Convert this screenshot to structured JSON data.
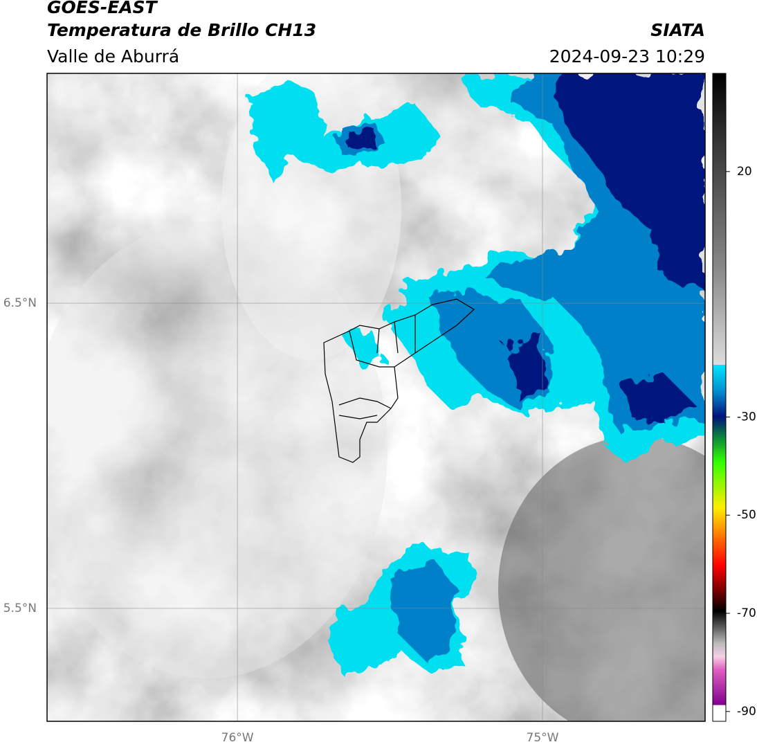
{
  "header": {
    "title": "GOES-EAST",
    "subtitle": "Temperatura de Brillo CH13",
    "region": "Valle de Aburrá",
    "agency": "SIATA",
    "timestamp": "2024-09-23 10:29"
  },
  "map": {
    "xlim": [
      -76.624,
      -74.467
    ],
    "ylim": [
      5.13,
      7.253
    ],
    "xticks": [
      {
        "value": -76,
        "label": "76°W"
      },
      {
        "value": -75,
        "label": "75°W"
      }
    ],
    "yticks": [
      {
        "value": 6.5,
        "label": "6.5°N"
      },
      {
        "value": 5.5,
        "label": "5.5°N"
      }
    ],
    "grid": true
  },
  "colorbar": {
    "lim": [
      -92,
      40
    ],
    "ticks": [
      20,
      -30,
      -50,
      -70,
      -90
    ]
  }
}
